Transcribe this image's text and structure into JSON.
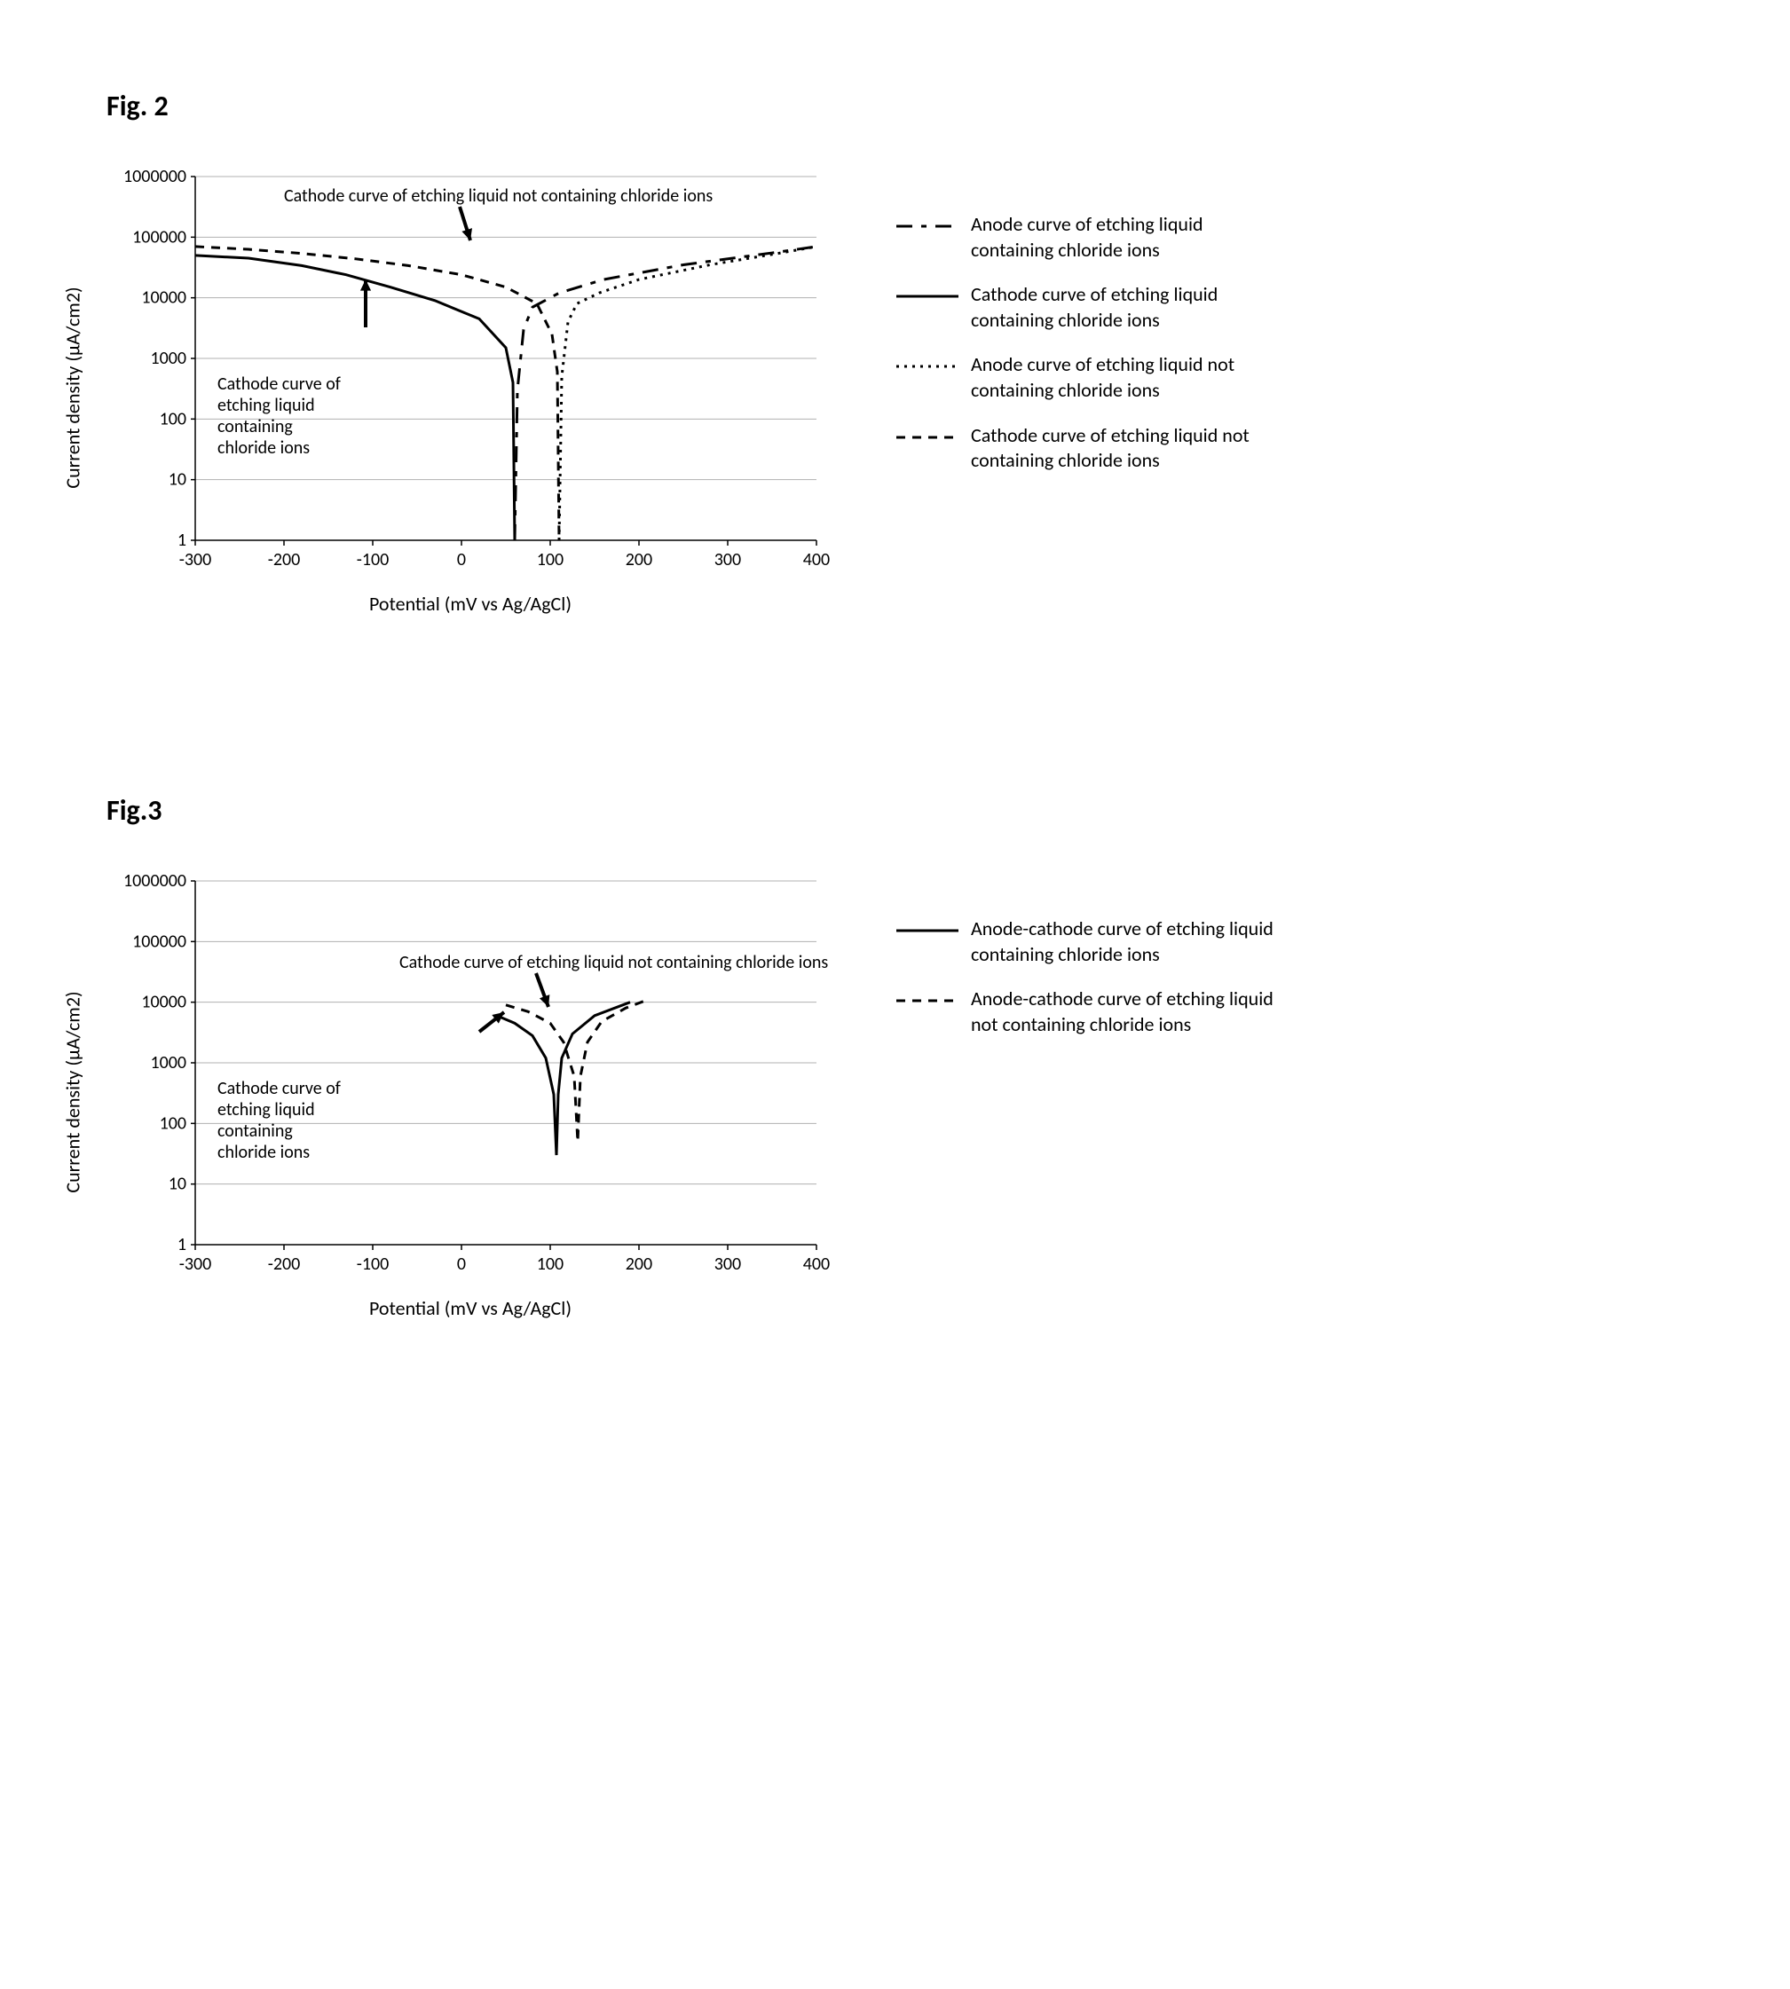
{
  "fig2": {
    "label": "Fig. 2",
    "type": "line",
    "background_color": "#ffffff",
    "grid_color": "#b0b0b0",
    "axis_color": "#000000",
    "ylabel": "Current density (μA/cm2)",
    "xlabel": "Potential (mV vs Ag/AgCl)",
    "xlim": [
      -300,
      400
    ],
    "xtick_step": 100,
    "ytick_values": [
      1,
      10,
      100,
      1000,
      10000,
      100000,
      1000000
    ],
    "yscale": "log",
    "label_fontsize": 22,
    "tick_fontsize": 20,
    "line_width": 3,
    "series": {
      "anode_with_cl": {
        "label": "Anode curve of etching liquid containing chloride ions",
        "dash": "long-dash-gap",
        "color": "#000000",
        "points": [
          [
            60,
            1
          ],
          [
            63,
            300
          ],
          [
            70,
            3000
          ],
          [
            80,
            7000
          ],
          [
            110,
            12000
          ],
          [
            160,
            20000
          ],
          [
            250,
            35000
          ],
          [
            350,
            55000
          ],
          [
            400,
            70000
          ]
        ]
      },
      "cathode_with_cl": {
        "label": "Cathode curve of etching liquid containing chloride ions",
        "dash": "solid",
        "color": "#000000",
        "points": [
          [
            -300,
            50000
          ],
          [
            -240,
            45000
          ],
          [
            -180,
            34000
          ],
          [
            -130,
            24000
          ],
          [
            -80,
            15000
          ],
          [
            -30,
            9000
          ],
          [
            20,
            4500
          ],
          [
            50,
            1500
          ],
          [
            58,
            400
          ],
          [
            60,
            1
          ]
        ]
      },
      "anode_without_cl": {
        "label": "Anode curve of etching liquid not containing chloride ions",
        "dash": "dotted",
        "color": "#000000",
        "points": [
          [
            110,
            1
          ],
          [
            113,
            500
          ],
          [
            120,
            4000
          ],
          [
            130,
            8000
          ],
          [
            155,
            12000
          ],
          [
            200,
            20000
          ],
          [
            280,
            35000
          ],
          [
            360,
            55000
          ],
          [
            400,
            70000
          ]
        ]
      },
      "cathode_without_cl": {
        "label": "Cathode curve of etching liquid not containing chloride ions",
        "dash": "short-dash",
        "color": "#000000",
        "points": [
          [
            -300,
            70000
          ],
          [
            -240,
            63000
          ],
          [
            -180,
            54000
          ],
          [
            -120,
            44000
          ],
          [
            -60,
            34000
          ],
          [
            0,
            24000
          ],
          [
            50,
            15000
          ],
          [
            85,
            8000
          ],
          [
            102,
            2500
          ],
          [
            108,
            600
          ],
          [
            110,
            1
          ]
        ]
      }
    },
    "annotations": {
      "top": "Cathode curve of etching liquid not containing chloride ions",
      "inside": "Cathode curve of etching liquid containing chloride ions",
      "inside_wrapped": [
        "Cathode curve of",
        "etching liquid",
        "containing",
        "chloride ions"
      ]
    },
    "arrow_color": "#000000",
    "legend": [
      {
        "style": "long-dash-gap",
        "text_key": "anode_with_cl"
      },
      {
        "style": "solid",
        "text_key": "cathode_with_cl"
      },
      {
        "style": "dotted",
        "text_key": "anode_without_cl"
      },
      {
        "style": "short-dash",
        "text_key": "cathode_without_cl"
      }
    ]
  },
  "fig3": {
    "label": "Fig.3",
    "type": "line",
    "background_color": "#ffffff",
    "grid_color": "#b0b0b0",
    "axis_color": "#000000",
    "ylabel": "Current density (μA/cm2)",
    "xlabel": "Potential (mV vs Ag/AgCl)",
    "xlim": [
      -300,
      400
    ],
    "xtick_step": 100,
    "ytick_values": [
      1,
      10,
      100,
      1000,
      10000,
      100000,
      1000000
    ],
    "yscale": "log",
    "label_fontsize": 22,
    "tick_fontsize": 20,
    "line_width": 3,
    "series": {
      "with_cl": {
        "label": "Anode-cathode curve of etching liquid containing chloride ions",
        "dash": "solid",
        "color": "#000000",
        "points": [
          [
            40,
            6000
          ],
          [
            60,
            4500
          ],
          [
            80,
            2800
          ],
          [
            95,
            1200
          ],
          [
            104,
            300
          ],
          [
            107,
            30
          ],
          [
            109,
            300
          ],
          [
            113,
            1200
          ],
          [
            125,
            3000
          ],
          [
            150,
            6000
          ],
          [
            190,
            10000
          ]
        ]
      },
      "without_cl": {
        "label": "Anode-cathode curve of etching liquid not containing chloride ions",
        "dash": "short-dash",
        "color": "#000000",
        "points": [
          [
            50,
            9000
          ],
          [
            75,
            7000
          ],
          [
            100,
            4500
          ],
          [
            115,
            2200
          ],
          [
            127,
            600
          ],
          [
            131,
            50
          ],
          [
            134,
            600
          ],
          [
            142,
            2200
          ],
          [
            158,
            4800
          ],
          [
            185,
            8000
          ],
          [
            210,
            11000
          ]
        ]
      }
    },
    "annotations": {
      "top": "Cathode curve of etching liquid not containing chloride ions",
      "inside": "Cathode curve of etching liquid containing chloride ions",
      "inside_wrapped": [
        "Cathode curve of",
        "etching liquid",
        "containing",
        "chloride ions"
      ]
    },
    "arrow_color": "#000000",
    "legend": [
      {
        "style": "solid",
        "text_key": "with_cl"
      },
      {
        "style": "short-dash",
        "text_key": "without_cl"
      }
    ]
  }
}
